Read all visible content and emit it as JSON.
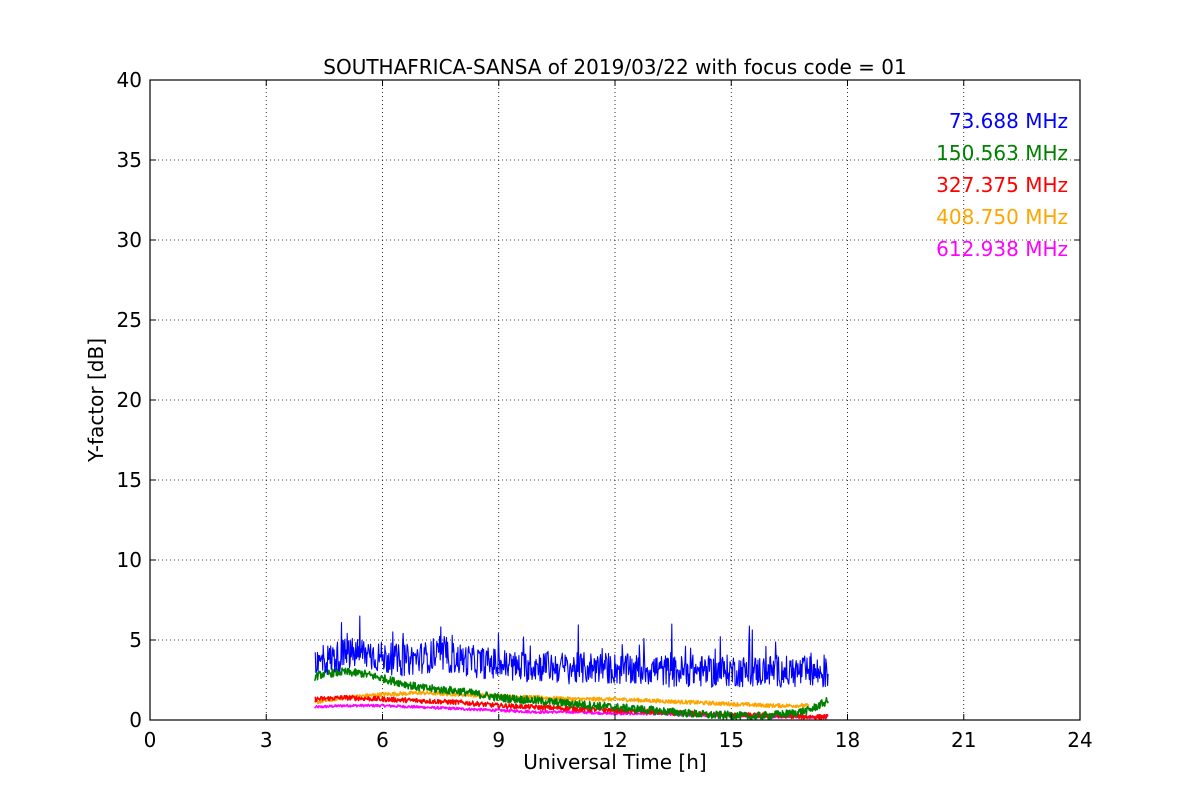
{
  "chart_data": {
    "type": "line",
    "title": "SOUTHAFRICA-SANSA of 2019/03/22 with focus code = 01",
    "xlabel": "Universal Time [h]",
    "ylabel": "Y-factor [dB]",
    "xlim": [
      0,
      24
    ],
    "ylim": [
      0,
      40
    ],
    "xticks": [
      "0",
      "3",
      "6",
      "9",
      "12",
      "15",
      "18",
      "21",
      "24"
    ],
    "yticks": [
      "0",
      "5",
      "10",
      "15",
      "20",
      "25",
      "30",
      "35",
      "40"
    ],
    "grid": true,
    "legend_position": "top-right",
    "series": [
      {
        "name": "73.688 MHz",
        "color": "#0000ff",
        "noise": 1.0,
        "x": [
          4.25,
          4.5,
          5.0,
          5.5,
          6.0,
          6.5,
          7.0,
          7.5,
          8.0,
          8.5,
          9.0,
          9.5,
          10.0,
          10.5,
          11.0,
          11.5,
          12.0,
          12.5,
          13.0,
          13.5,
          14.0,
          14.5,
          15.0,
          15.5,
          16.0,
          16.5,
          17.0,
          17.5
        ],
        "y": [
          3.4,
          3.7,
          4.1,
          4.2,
          3.9,
          3.7,
          3.9,
          4.0,
          3.8,
          3.6,
          3.5,
          3.3,
          3.4,
          3.3,
          3.2,
          3.3,
          3.2,
          3.1,
          3.2,
          3.0,
          3.1,
          3.0,
          3.1,
          3.0,
          3.1,
          3.0,
          3.0,
          2.9
        ]
      },
      {
        "name": "150.563 MHz",
        "color": "#008000",
        "noise": 0.25,
        "x": [
          4.25,
          4.5,
          5.0,
          5.5,
          6.0,
          6.5,
          7.0,
          7.5,
          8.0,
          8.5,
          9.0,
          9.5,
          10.0,
          10.5,
          11.0,
          11.5,
          12.0,
          12.5,
          13.0,
          13.5,
          14.0,
          14.5,
          15.0,
          15.5,
          16.0,
          16.5,
          17.0,
          17.5
        ],
        "y": [
          2.7,
          2.9,
          3.0,
          2.9,
          2.6,
          2.3,
          2.0,
          1.9,
          1.8,
          1.6,
          1.4,
          1.3,
          1.2,
          1.1,
          1.0,
          0.9,
          0.8,
          0.7,
          0.6,
          0.5,
          0.4,
          0.3,
          0.3,
          0.2,
          0.3,
          0.4,
          0.6,
          1.2
        ]
      },
      {
        "name": "327.375 MHz",
        "color": "#ff0000",
        "noise": 0.15,
        "x": [
          4.25,
          5.0,
          6.0,
          7.0,
          8.0,
          9.0,
          10.0,
          11.0,
          12.0,
          13.0,
          14.0,
          15.0,
          16.0,
          17.0,
          17.5
        ],
        "y": [
          1.3,
          1.4,
          1.3,
          1.2,
          1.1,
          0.9,
          0.8,
          0.7,
          0.6,
          0.5,
          0.4,
          0.3,
          0.3,
          0.2,
          0.2
        ]
      },
      {
        "name": "408.750 MHz",
        "color": "#ffa500",
        "noise": 0.12,
        "x": [
          4.25,
          5.0,
          6.0,
          7.0,
          8.0,
          9.0,
          10.0,
          11.0,
          12.0,
          13.0,
          14.0,
          15.0,
          16.0,
          17.0
        ],
        "y": [
          1.1,
          1.4,
          1.6,
          1.7,
          1.6,
          1.5,
          1.4,
          1.3,
          1.3,
          1.2,
          1.1,
          1.0,
          0.9,
          0.9
        ]
      },
      {
        "name": "612.938 MHz",
        "color": "#ff00ff",
        "noise": 0.08,
        "x": [
          4.25,
          5.0,
          6.0,
          7.0,
          8.0,
          9.0,
          10.0,
          11.0,
          12.0,
          13.0,
          14.0,
          15.0,
          16.0,
          17.0,
          17.5
        ],
        "y": [
          0.8,
          0.9,
          0.9,
          0.8,
          0.7,
          0.6,
          0.5,
          0.5,
          0.4,
          0.4,
          0.3,
          0.3,
          0.2,
          0.2,
          0.2
        ]
      }
    ]
  }
}
